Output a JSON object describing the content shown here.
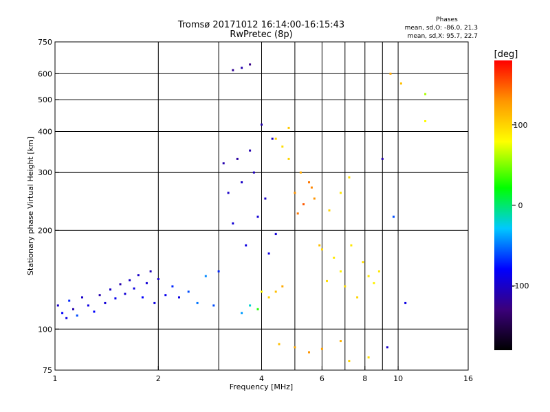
{
  "chart_data": {
    "type": "scatter",
    "title": "Tromsø 20171012 16:14:00-16:15:43",
    "subtitle": "RwPretec (8p)",
    "xlabel": "Frequency [MHz]",
    "ylabel": "Stationary phase Virtual Height [km]",
    "x_scale": "log",
    "y_scale": "log",
    "xlim": [
      1,
      16
    ],
    "ylim": [
      75,
      750
    ],
    "x_ticks": [
      1,
      2,
      4,
      6,
      8,
      10,
      16
    ],
    "y_ticks": [
      75,
      100,
      200,
      300,
      400,
      500,
      600,
      750
    ],
    "x_gridlines": [
      2,
      3,
      4,
      5,
      6,
      7,
      8,
      9,
      10
    ],
    "y_gridlines": [
      100,
      200,
      300,
      400,
      500,
      600
    ],
    "grid": true,
    "phases": {
      "heading": "Phases",
      "line1": "mean, sd,O: -86.0, 21.3",
      "line2": "mean, sd,X:  95.7, 22.7"
    },
    "colorbar": {
      "label": "[deg]",
      "ticks": [
        100,
        0,
        -100
      ],
      "range": [
        -180,
        180
      ],
      "colors": [
        "#000000",
        "#3b007a",
        "#0000ff",
        "#00c8ff",
        "#00ff00",
        "#ffff00",
        "#ff9600",
        "#ff0000"
      ]
    },
    "series": [
      {
        "values": [
          [
            1.02,
            118,
            -100
          ],
          [
            1.05,
            112,
            -80
          ],
          [
            1.08,
            108,
            -90
          ],
          [
            1.1,
            122,
            -70
          ],
          [
            1.13,
            115,
            -110
          ],
          [
            1.16,
            110,
            -60
          ],
          [
            1.2,
            125,
            -100
          ],
          [
            1.25,
            118,
            -90
          ],
          [
            1.3,
            113,
            -80
          ],
          [
            1.35,
            127,
            -110
          ],
          [
            1.4,
            120,
            -95
          ],
          [
            1.45,
            132,
            -100
          ],
          [
            1.5,
            124,
            -85
          ],
          [
            1.55,
            137,
            -110
          ],
          [
            1.6,
            128,
            -95
          ],
          [
            1.65,
            141,
            -100
          ],
          [
            1.7,
            133,
            -90
          ],
          [
            1.75,
            146,
            -100
          ],
          [
            1.8,
            125,
            -80
          ],
          [
            1.85,
            138,
            -95
          ],
          [
            1.9,
            150,
            -105
          ],
          [
            1.95,
            120,
            -90
          ],
          [
            2.0,
            142,
            -100
          ],
          [
            2.1,
            127,
            -85
          ],
          [
            2.2,
            135,
            -70
          ],
          [
            2.3,
            125,
            -90
          ],
          [
            2.45,
            130,
            -60
          ],
          [
            2.6,
            120,
            -50
          ],
          [
            2.75,
            145,
            -45
          ],
          [
            2.9,
            118,
            -60
          ],
          [
            3.0,
            150,
            -70
          ],
          [
            3.1,
            320,
            -110
          ],
          [
            3.2,
            260,
            -100
          ],
          [
            3.3,
            210,
            -95
          ],
          [
            3.4,
            330,
            -115
          ],
          [
            3.5,
            280,
            -100
          ],
          [
            3.6,
            180,
            -90
          ],
          [
            3.7,
            350,
            -110
          ],
          [
            3.8,
            300,
            -105
          ],
          [
            3.9,
            220,
            -95
          ],
          [
            4.0,
            420,
            -110
          ],
          [
            4.1,
            250,
            -100
          ],
          [
            4.2,
            170,
            -90
          ],
          [
            4.3,
            380,
            -100
          ],
          [
            4.4,
            195,
            -95
          ],
          [
            3.3,
            615,
            -120
          ],
          [
            3.5,
            625,
            -110
          ],
          [
            3.7,
            640,
            -125
          ]
        ]
      },
      {
        "values": [
          [
            3.5,
            112,
            -40
          ],
          [
            3.7,
            118,
            -20
          ],
          [
            3.9,
            115,
            30
          ],
          [
            4.0,
            130,
            80
          ],
          [
            4.2,
            125,
            100
          ],
          [
            4.4,
            130,
            110
          ],
          [
            4.6,
            135,
            120
          ],
          [
            4.8,
            330,
            100
          ],
          [
            5.0,
            260,
            130
          ],
          [
            5.1,
            225,
            140
          ],
          [
            5.3,
            240,
            150
          ],
          [
            5.5,
            280,
            140
          ],
          [
            5.7,
            250,
            130
          ],
          [
            5.9,
            180,
            110
          ],
          [
            6.0,
            175,
            100
          ],
          [
            6.2,
            140,
            95
          ],
          [
            6.5,
            165,
            90
          ],
          [
            6.8,
            150,
            85
          ],
          [
            7.0,
            135,
            95
          ],
          [
            7.3,
            180,
            90
          ],
          [
            7.6,
            125,
            100
          ],
          [
            7.9,
            160,
            95
          ],
          [
            8.2,
            145,
            90
          ],
          [
            8.5,
            138,
            85
          ],
          [
            8.8,
            150,
            90
          ],
          [
            4.4,
            380,
            100
          ],
          [
            4.6,
            360,
            95
          ],
          [
            4.8,
            410,
            105
          ],
          [
            5.2,
            300,
            120
          ],
          [
            5.6,
            270,
            135
          ],
          [
            6.3,
            230,
            100
          ],
          [
            6.8,
            260,
            90
          ],
          [
            7.2,
            290,
            95
          ],
          [
            9.0,
            330,
            -110
          ],
          [
            9.5,
            600,
            120
          ],
          [
            10.2,
            560,
            110
          ],
          [
            12.0,
            520,
            60
          ],
          [
            12.0,
            430,
            80
          ],
          [
            9.7,
            220,
            -60
          ],
          [
            10.5,
            120,
            -90
          ],
          [
            4.5,
            90,
            110
          ],
          [
            5.0,
            88,
            120
          ],
          [
            5.5,
            85,
            130
          ],
          [
            6.0,
            87,
            125
          ],
          [
            6.8,
            92,
            115
          ],
          [
            7.2,
            80,
            100
          ],
          [
            8.2,
            82,
            95
          ],
          [
            9.3,
            88,
            -100
          ]
        ]
      }
    ]
  }
}
